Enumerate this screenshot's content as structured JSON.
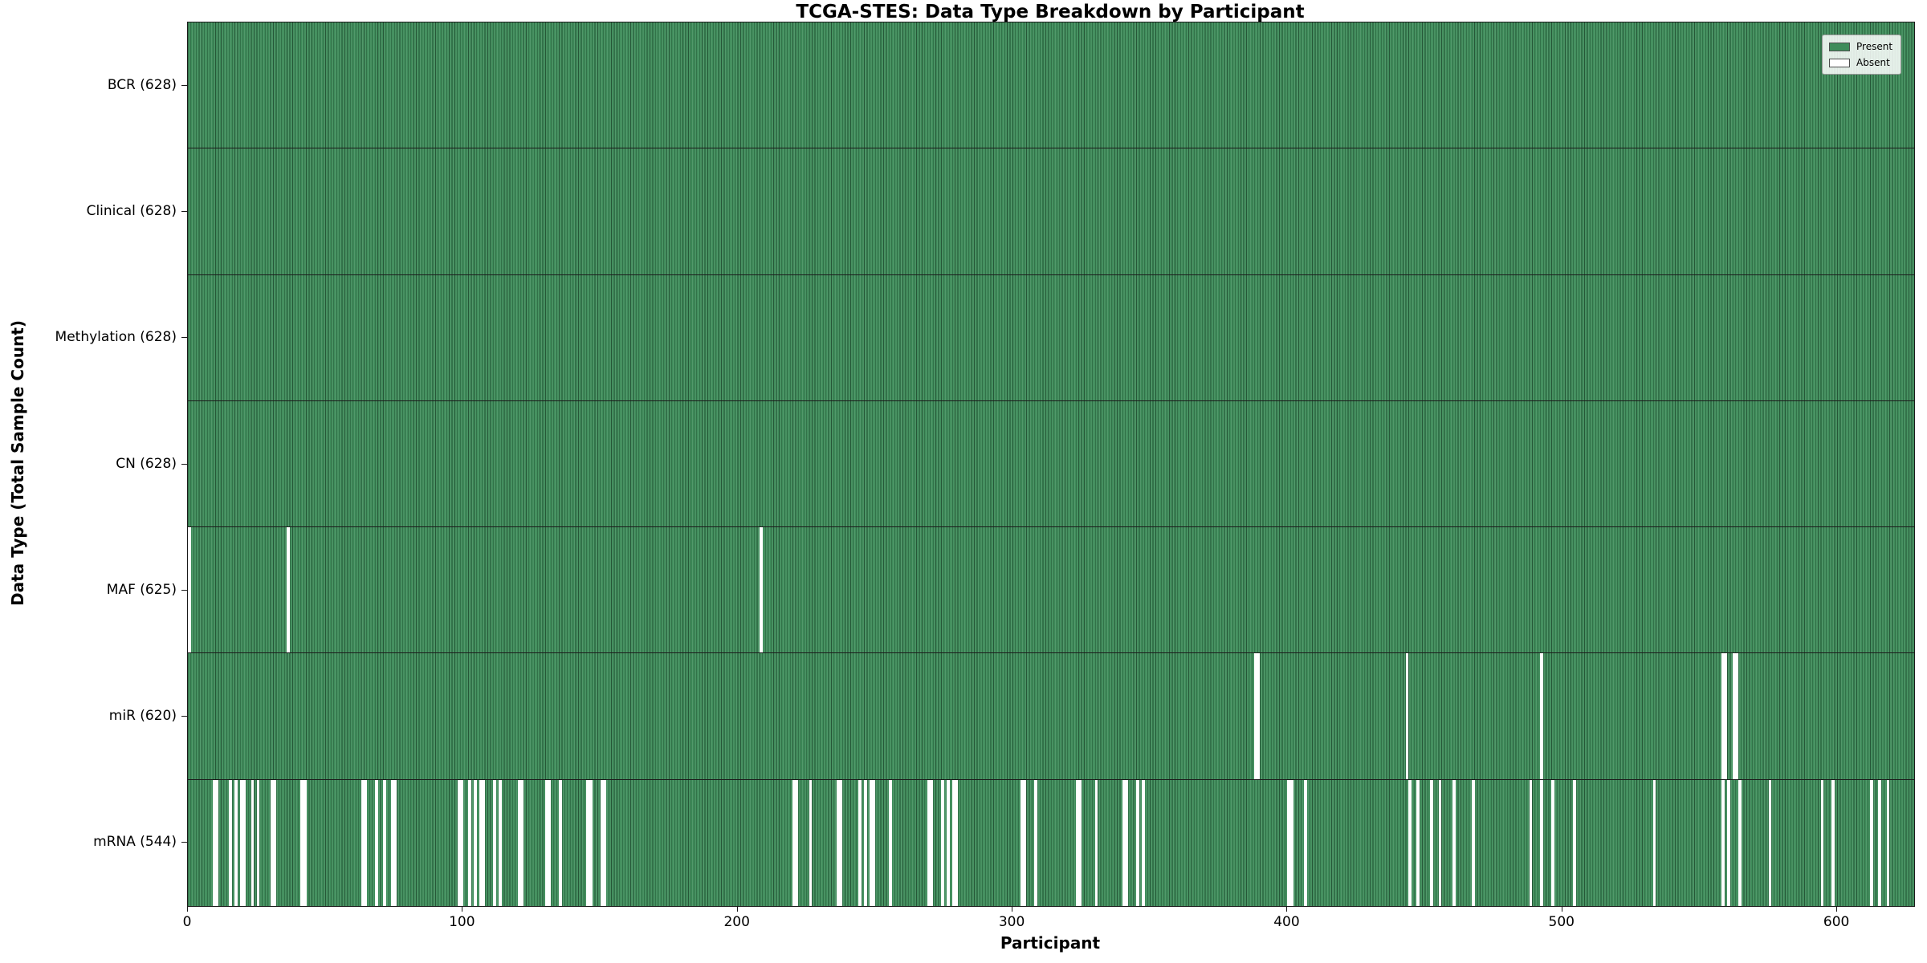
{
  "colors": {
    "present": "#3e8c5a",
    "absent": "#ffffff",
    "cell_border": "rgba(0,0,0,0.38)",
    "row_separator": "#1b1b1b",
    "axis": "#1a1a1a",
    "background": "#ffffff"
  },
  "chart_data": {
    "type": "heatmap",
    "title": "TCGA-STES: Data Type Breakdown by Participant",
    "xlabel": "Participant",
    "ylabel": "Data Type (Total Sample Count)",
    "x_range": [
      0,
      628
    ],
    "x_ticks": [
      0,
      100,
      200,
      300,
      400,
      500,
      600
    ],
    "grid": false,
    "legend_position": "upper right",
    "legend": [
      {
        "label": "Present",
        "color": "#3e8c5a"
      },
      {
        "label": "Absent",
        "color": "#ffffff"
      }
    ],
    "rows": [
      {
        "label": "BCR (628)",
        "total": 628,
        "absent_participants": []
      },
      {
        "label": "Clinical (628)",
        "total": 628,
        "absent_participants": []
      },
      {
        "label": "Methylation (628)",
        "total": 628,
        "absent_participants": []
      },
      {
        "label": "CN (628)",
        "total": 628,
        "absent_participants": []
      },
      {
        "label": "MAF (625)",
        "total": 625,
        "absent_participants": [
          0,
          36,
          208
        ]
      },
      {
        "label": "miR (620)",
        "total": 620,
        "absent_participants": [
          388,
          389,
          443,
          492,
          558,
          559,
          562,
          563
        ]
      },
      {
        "label": "mRNA (544)",
        "total": 544,
        "absent_participants": [
          9,
          10,
          15,
          17,
          19,
          20,
          23,
          25,
          30,
          31,
          41,
          42,
          63,
          64,
          68,
          71,
          74,
          75,
          98,
          99,
          102,
          104,
          106,
          107,
          111,
          113,
          120,
          121,
          130,
          131,
          135,
          145,
          146,
          150,
          151,
          220,
          221,
          226,
          236,
          237,
          244,
          246,
          248,
          249,
          255,
          269,
          270,
          274,
          276,
          278,
          279,
          303,
          304,
          308,
          323,
          324,
          330,
          340,
          341,
          345,
          347,
          400,
          401,
          406,
          444,
          447,
          452,
          455,
          460,
          467,
          488,
          492,
          496,
          504,
          533,
          558,
          560,
          564,
          575,
          594,
          598,
          612,
          615,
          618
        ]
      }
    ]
  }
}
